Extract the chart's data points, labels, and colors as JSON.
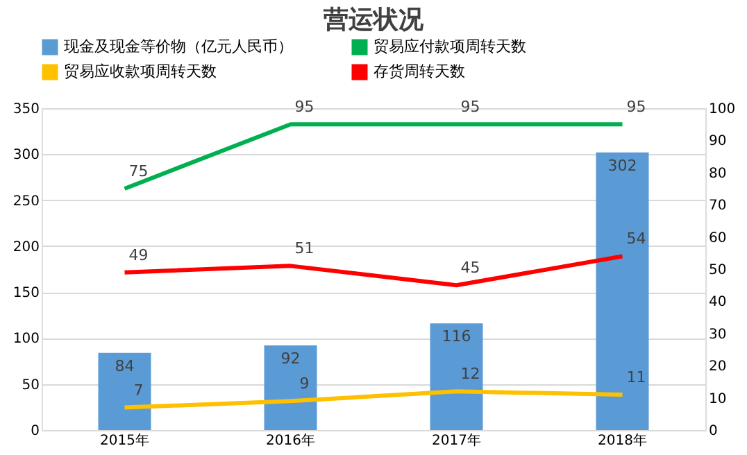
{
  "chart_data": {
    "type": "bar",
    "title": "营运状况",
    "categories": [
      "2015年",
      "2016年",
      "2017年",
      "2018年"
    ],
    "series": [
      {
        "name": "现金及现金等价物（亿元人民币）",
        "color": "#5b9bd5",
        "values": [
          84,
          92,
          116,
          302
        ]
      },
      {
        "name": "贸易应付款项周转天数",
        "type": "line",
        "axis": "y2",
        "color": "#00b050",
        "values": [
          75,
          95,
          95,
          95
        ]
      },
      {
        "name": "贸易应收款项周转天数",
        "type": "line",
        "axis": "y2",
        "color": "#ffc000",
        "values": [
          7,
          9,
          12,
          11
        ]
      },
      {
        "name": "存货周转天数",
        "type": "line",
        "axis": "y2",
        "color": "#ff0000",
        "values": [
          49,
          51,
          45,
          54
        ]
      }
    ],
    "ylim": [
      0,
      350
    ],
    "yticks": [
      0,
      50,
      100,
      150,
      200,
      250,
      300,
      350
    ],
    "y2lim": [
      0,
      100
    ],
    "y2ticks": [
      0,
      10,
      20,
      30,
      40,
      50,
      60,
      70,
      80,
      90,
      100
    ],
    "grid": "y",
    "legend": "top",
    "data_labels": true
  }
}
